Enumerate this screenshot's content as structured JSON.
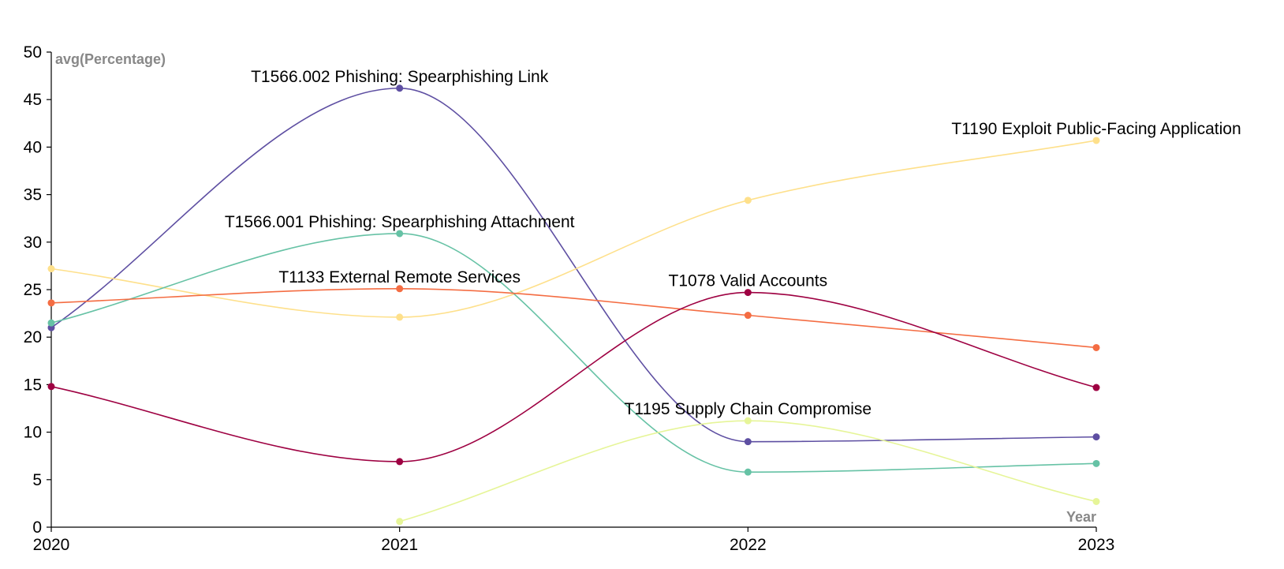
{
  "chart_data": {
    "type": "line",
    "x": [
      2020,
      2021,
      2022,
      2023
    ],
    "x_tick_labels": [
      "2020",
      "2021",
      "2022",
      "2023"
    ],
    "y_ticks": [
      0,
      5,
      10,
      15,
      20,
      25,
      30,
      35,
      40,
      45,
      50
    ],
    "ylim": [
      0,
      50
    ],
    "xlabel": "Year",
    "ylabel": "avg(Percentage)",
    "grid": false,
    "legend": "none",
    "curve": "smooth",
    "series": [
      {
        "name": "T1566.002 Phishing: Spearphishing Link",
        "color": "#5e4fa2",
        "x": [
          2020,
          2021,
          2022,
          2023
        ],
        "values": [
          21.0,
          46.2,
          9.0,
          9.5
        ],
        "label_at": 2021
      },
      {
        "name": "T1190 Exploit Public-Facing Application",
        "color": "#fee08b",
        "x": [
          2020,
          2021,
          2022,
          2023
        ],
        "values": [
          27.2,
          22.1,
          34.4,
          40.7
        ],
        "label_at": 2023
      },
      {
        "name": "T1566.001 Phishing: Spearphishing Attachment",
        "color": "#66c2a5",
        "x": [
          2020,
          2021,
          2022,
          2023
        ],
        "values": [
          21.5,
          30.9,
          5.8,
          6.7
        ],
        "label_at": 2021
      },
      {
        "name": "T1133 External Remote Services",
        "color": "#f46d43",
        "x": [
          2020,
          2021,
          2022,
          2023
        ],
        "values": [
          23.6,
          25.1,
          22.3,
          18.9
        ],
        "label_at": 2021
      },
      {
        "name": "T1078 Valid Accounts",
        "color": "#9e0142",
        "x": [
          2020,
          2021,
          2022,
          2023
        ],
        "values": [
          14.8,
          6.9,
          24.7,
          14.7
        ],
        "label_at": 2022
      },
      {
        "name": "T1195 Supply Chain Compromise",
        "color": "#e6f598",
        "x": [
          2021,
          2022,
          2023
        ],
        "values": [
          0.6,
          11.2,
          2.7
        ],
        "label_at": 2022
      }
    ]
  }
}
